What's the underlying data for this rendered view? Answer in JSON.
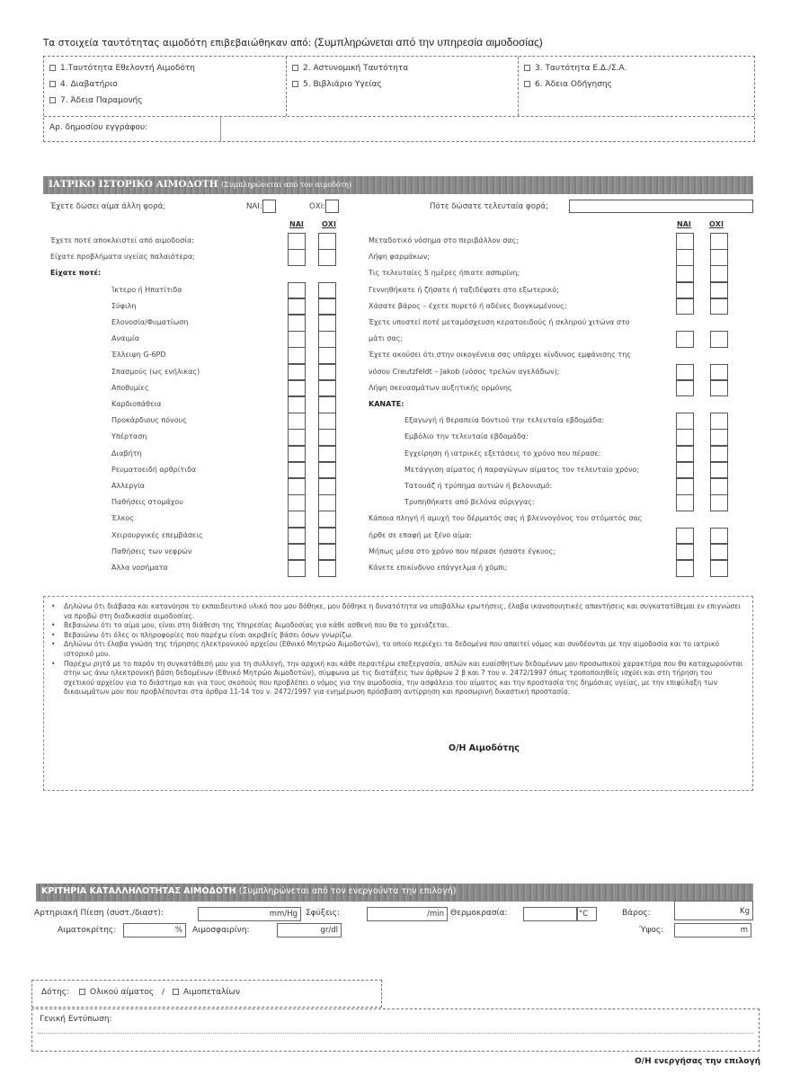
{
  "identity": {
    "title_prefix": "Τα στοιχεία ταυτότητας αιμοδότη επιβεβαιώθηκαν από:",
    "title_note": "(Συμπληρώνεται από την υπηρεσία αιμοδοσίας)",
    "columns": [
      [
        "1.Ταυτότητα Εθελοντή Αιμοδότη",
        "4. Διαβατήριο",
        "7. Άδεια Παραμονής"
      ],
      [
        "2. Αστυνομική Ταυτότητα",
        "5. Βιβλιάριο Υγείας"
      ],
      [
        "3. Ταυτότητα Ε.Δ./Σ.Α.",
        "6. Άδεια Οδήγησης"
      ]
    ],
    "doc_number_label": "Αρ. δημοσίου εγγράφου:",
    "doc_number_value": ""
  },
  "medical": {
    "header_title": "ΙΑΤΡΙΚΟ ΙΣΤΟΡΙΚΟ ΑΙΜΟΔΟΤΗ",
    "header_note": "(Συμπληρώνεται από τον αιμοδότη)",
    "donated_before_label": "Έχετε δώσει αίμα άλλη φορά;",
    "yes_label": "ΝΑΙ:",
    "no_label": "ΟΧΙ:",
    "last_time_label": "Πότε δώσατε τελευταία φορά;",
    "last_time_value": "",
    "col_yes": "ΝΑΙ",
    "col_no": "ΟΧΙ",
    "left_rows": [
      {
        "text": "Έχετε ποτέ αποκλειστεί από αιμοδοσία:",
        "indent": false,
        "box": true
      },
      {
        "text": "Είχατε προβλήματα υγείας παλαιότερα;",
        "indent": false,
        "box": true
      },
      {
        "text": "Είχατε ποτέ:",
        "indent": false,
        "box": false,
        "bold": true
      },
      {
        "text": "Ίκτερο ή Ηπατίτιδα",
        "indent": true,
        "box": true
      },
      {
        "text": "Σύφιλη",
        "indent": true,
        "box": true
      },
      {
        "text": "Ελονοσία/Φυματίωση",
        "indent": true,
        "box": true
      },
      {
        "text": "Αναιμία",
        "indent": true,
        "box": true
      },
      {
        "text": "Έλλειψη G-6PD",
        "indent": true,
        "box": true
      },
      {
        "text": "Σπασμούς (ως ενήλικας)",
        "indent": true,
        "box": true
      },
      {
        "text": "Αποθυμίες",
        "indent": true,
        "box": true
      },
      {
        "text": "Καρδιοπάθεια",
        "indent": true,
        "box": true
      },
      {
        "text": "Προκάρδιους πόνους",
        "indent": true,
        "box": true
      },
      {
        "text": "Υπέρταση",
        "indent": true,
        "box": true
      },
      {
        "text": "Διαβήτη",
        "indent": true,
        "box": true
      },
      {
        "text": "Ρευματοειδή αρθρίτιδα",
        "indent": true,
        "box": true
      },
      {
        "text": "Αλλεργία",
        "indent": true,
        "box": true
      },
      {
        "text": "Παθήσεις στομάχου",
        "indent": true,
        "box": true
      },
      {
        "text": "Έλκος",
        "indent": true,
        "box": true
      },
      {
        "text": "Χειρουργικές επεμβάσεις",
        "indent": true,
        "box": true
      },
      {
        "text": "Παθήσεις των νεφρών",
        "indent": true,
        "box": true
      },
      {
        "text": "Άλλα νοσήματα",
        "indent": true,
        "box": true
      }
    ],
    "right_rows": [
      {
        "text": "Μεταδοτικό νόσημα στο περιβάλλον σας;",
        "indent": false,
        "box": true
      },
      {
        "text": "Λήψη φαρμάκων;",
        "indent": false,
        "box": true
      },
      {
        "text": "Τις τελευταίες 5 ημέρες ήπιατε ασπιρίνη;",
        "indent": false,
        "box": true
      },
      {
        "text": "Γεννηθήκατε ή ζήσατε ή ταξιδέψατε στο εξωτερικό;",
        "indent": false,
        "box": true
      },
      {
        "text": "Χάσατε βάρος – έχετε πυρετό ή αδένες διογκωμένους;",
        "indent": false,
        "box": true
      },
      {
        "text": "Έχετε υποστεί ποτέ μεταμόσχευση κερατοειδούς ή  σκληρού χιτώνα στο",
        "indent": false,
        "box": false
      },
      {
        "text": "μάτι σας;",
        "indent": false,
        "box": true
      },
      {
        "text": "Έχετε ακούσει ότι στην οικογένεια σας υπάρχει κίνδυνος εμφάνισης της",
        "indent": false,
        "box": false
      },
      {
        "text": "νόσου Creutzfeldt – Jakob (νόσος τρελών αγελάδων);",
        "indent": false,
        "box": true
      },
      {
        "text": "Λήψη σκευασμάτων αυξητικής ορμόνης",
        "indent": false,
        "box": true
      },
      {
        "text": "ΚΑΝΑΤΕ:",
        "indent": false,
        "box": false,
        "bold": true
      },
      {
        "text": "Εξαγωγή ή θεραπεία δοντιού την τελευταία εβδομάδα:",
        "indent": true,
        "box": true
      },
      {
        "text": "Εμβόλιο την τελευταία εβδομάδα:",
        "indent": true,
        "box": true
      },
      {
        "text": "Εγχείρηση ή ιατρικές εξετάσεις το χρόνο που πέρασε:",
        "indent": true,
        "box": true
      },
      {
        "text": "Μετάγγιση αίματος ή παραγώγων αίματος τον τελευταίο χρόνο;",
        "indent": true,
        "box": true
      },
      {
        "text": "Τατουάζ ή τρύπημα αυτιών ή βελονισμό:",
        "indent": true,
        "box": true
      },
      {
        "text": "Τρυπηθήκατε από βελόνα σύριγγας:",
        "indent": true,
        "box": true
      },
      {
        "text": "Κάποια πληγή ή αμυχή του δέρματός σας ή βλεννογόνος του στόματός σας",
        "indent": false,
        "box": false
      },
      {
        "text": "ήρθε σε επαφή με ξένο αίμα:",
        "indent": false,
        "box": true
      },
      {
        "text": "Μήπως μέσα στο χρόνο που πέρασε ήσαστε έγκυος;",
        "indent": false,
        "box": true
      },
      {
        "text": "Κάνετε επικίνδυνο επάγγελμα ή χόμπι;",
        "indent": false,
        "box": true
      }
    ]
  },
  "declaration": {
    "items": [
      "Δηλώνω ότι διάβασα και κατανόησα το εκπαιδευτικό υλικό που μου δόθηκε, μου δόθηκε η δυνατότητα να υποβάλλω ερωτήσεις, έλαβα ικανοποιητικές απαντήσεις και συγκατατίθεμαι εν επιγνώσει να προβώ στη διαδικασία αιμοδοσίας.",
      "Βεβαιώνω ότι το αίμα μου, είναι στη διάθεση της Υπηρεσίας Αιμοδοσίας για κάθε ασθενή που θα το χρειάζεται.",
      "Βεβαιώνω ότι όλες οι πληροφορίες που παρέχω είναι ακριβείς βάσει όσων γνωρίζω.",
      "Δηλώνω ότι έλαβα γνώση της τήρησης ηλεκτρονικού αρχείου (Εθνικό Μητρώο Αιμοδοτών), το οποίο περιέχει τα δεδομένα που απαιτεί νόμος και συνδέονται με την αιμοδοσία και το ιατρικό ιστορικό μου.",
      "Παρέχω ρητά με το παρόν τη συγκατάθεσή μου για τη συλλογή, την αρχική και κάθε περαιτέρω επεξεργασία, απλών και ευαίσθητων δεδομένων μου προσωπικού χαρακτήρα που θα καταχωρούνται στην ως άνω ηλεκτρονική βάση δεδομένων (Εθνικό Μητρώο Αιμοδοτών), σύμφωνα με τις διατάξεις των άρθρων 2 β και 7 του ν. 2472/1997 όπως τροποποιηθείς ισχύει και στη τήρηση του σχετικού αρχείου για το διάστημα και για τους σκοπούς που προβλέπει ο νόμος για την αιμοδοσία, την ασφάλεια του αίματος και την προστασία της δημόσιας υγείας, με την επιφύλαξη των δικαιωμάτων μου που προβλέπονται στα άρθρα 11-14 του ν. 2472/1997 για ενημέρωση πρόσβαση αντίρρηση και προσωρινή δικαστική προστασία."
    ],
    "signature": "Ο/Η Αιμοδότης"
  },
  "eligibility": {
    "header_title": "ΚΡΙΤΗΡΙΑ ΚΑΤΑΛΛΗΛΟΤΗΤΑΣ ΑΙΜΟΔΟΤΗ",
    "header_note": "(Συμπληρώνεται από τον ενεργούντα την επιλογή)",
    "bp_label": "Αρτηριακή Πίεση (συστ./διαστ):",
    "bp_unit": "mm/Hg",
    "pulse_label": "Σφύξεις:",
    "pulse_unit": "/min",
    "temp_label": "Θερμοκρασία:",
    "temp_unit": "°C",
    "weight_label": "Βάρος:",
    "weight_unit": "Kg",
    "hct_label": "Αιματοκρίτης:",
    "hct_unit": "%",
    "hb_label": "Αιμοσφαιρίνη:",
    "hb_unit": "gr/dl",
    "height_label": "Ύψος:",
    "height_unit": "m"
  },
  "donor": {
    "label": "Δότης:",
    "option_whole": "Ολικού αίματος",
    "separator": "/",
    "option_platelets": "Αιμοπεταλίων",
    "impression_label": "Γενική Εντύπωση:",
    "signature": "Ο/Η ενεργήσας την επιλογή"
  }
}
